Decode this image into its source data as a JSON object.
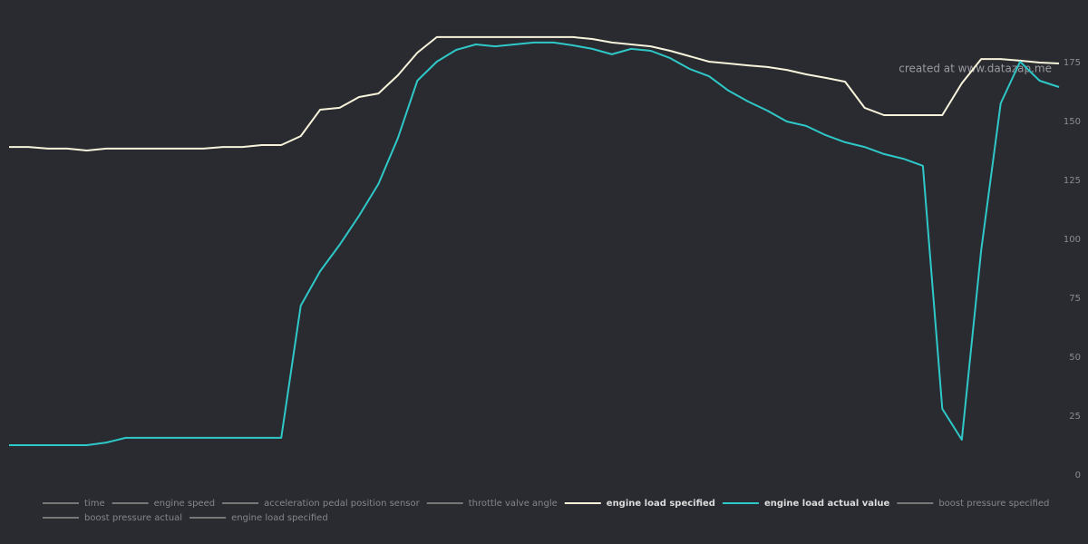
{
  "chart_data": {
    "type": "line",
    "annotation": "created at www.datazap.me",
    "categories": [
      null,
      null,
      null,
      null,
      null,
      null,
      null,
      null,
      null,
      null,
      null,
      null,
      null,
      null,
      null,
      null,
      null,
      null,
      null,
      null,
      null,
      null,
      null,
      null,
      null,
      null,
      null,
      null,
      null,
      null,
      null,
      null,
      null,
      null,
      null,
      null,
      null,
      null,
      null,
      null,
      null,
      null,
      null,
      null,
      null,
      null,
      null,
      null,
      null,
      null,
      null,
      null,
      null,
      null,
      null
    ],
    "ylim": [
      0,
      200
    ],
    "yticks": [
      0,
      25,
      50,
      75,
      100,
      125,
      150,
      175
    ],
    "grid": false,
    "series": [
      {
        "name": "time",
        "hidden": true,
        "color": "#777777"
      },
      {
        "name": "engine speed",
        "hidden": true,
        "color": "#777777"
      },
      {
        "name": "acceleration pedal position sensor",
        "hidden": true,
        "color": "#777777"
      },
      {
        "name": "throttle valve angle",
        "hidden": true,
        "color": "#777777"
      },
      {
        "name": "engine load specified",
        "hidden": false,
        "color": "#f8f4dc",
        "values": [
          139.2,
          139.2,
          138.5,
          138.5,
          137.7,
          138.5,
          138.5,
          138.5,
          138.5,
          138.5,
          138.5,
          139.2,
          139.2,
          140,
          140,
          143.8,
          155,
          155.8,
          160.4,
          161.9,
          169.6,
          179.2,
          185.8,
          185.8,
          185.8,
          185.8,
          185.8,
          185.8,
          185.8,
          185.8,
          185,
          183.5,
          182.7,
          181.9,
          180,
          177.7,
          175.4,
          174.6,
          173.8,
          173.1,
          171.9,
          170,
          168.5,
          166.9,
          155.8,
          152.7,
          152.7,
          152.7,
          152.7,
          166.2,
          176.5,
          176.5,
          175.8,
          175,
          174.6
        ]
      },
      {
        "name": "engine load actual value",
        "hidden": false,
        "color": "#2ec8c8",
        "values": [
          12.7,
          12.7,
          12.7,
          12.7,
          12.7,
          13.8,
          15.8,
          15.8,
          15.8,
          15.8,
          15.8,
          15.8,
          15.8,
          15.8,
          15.8,
          71.9,
          86.5,
          97.7,
          110,
          123.5,
          143,
          167.3,
          175.4,
          180.4,
          182.7,
          181.9,
          182.7,
          183.5,
          183.5,
          182.3,
          180.8,
          178.5,
          180.8,
          180,
          176.9,
          172.3,
          169.2,
          163.1,
          158.5,
          154.6,
          150,
          148.1,
          144.2,
          141.2,
          139.2,
          136.2,
          134.2,
          131.2,
          28.1,
          15,
          95.4,
          157.7,
          175.4,
          167.3,
          164.6
        ]
      },
      {
        "name": "boost pressure specified",
        "hidden": true,
        "color": "#777777"
      },
      {
        "name": "boost pressure actual",
        "hidden": true,
        "color": "#777777"
      },
      {
        "name": "engine load specified",
        "hidden": true,
        "color": "#777777"
      }
    ]
  }
}
